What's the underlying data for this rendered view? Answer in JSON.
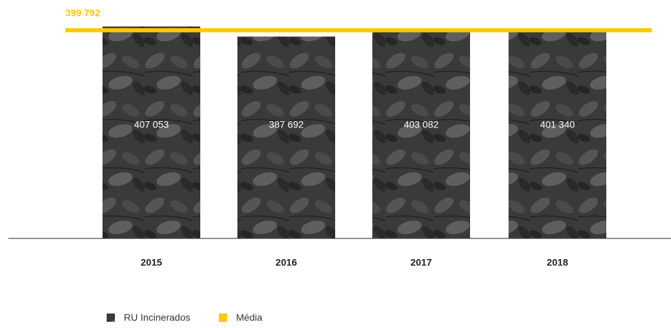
{
  "chart_data": {
    "type": "bar",
    "categories": [
      "2015",
      "2016",
      "2017",
      "2018"
    ],
    "series": [
      {
        "name": "RU Incinerados",
        "color": "#3c3c3c",
        "values": [
          407053,
          387692,
          403082,
          401340
        ],
        "value_labels": [
          "407 053",
          "387 692",
          "403 082",
          "401 340"
        ]
      }
    ],
    "average": {
      "name": "Média",
      "value": 399792,
      "label": "399 792",
      "color": "#ffc800"
    },
    "ylim": [
      0,
      450000
    ]
  }
}
